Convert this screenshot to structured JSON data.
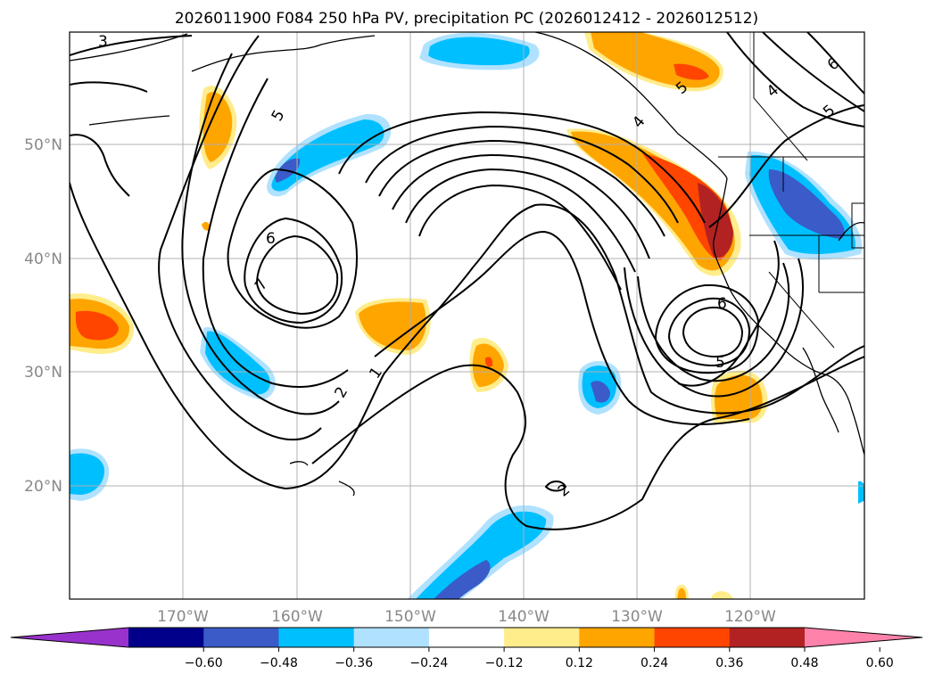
{
  "title": "2026011900 F084 250 hPa PV, precipitation PC (2026012412 - 2026012512)",
  "latitude_labels": [
    "50°N",
    "40°N",
    "30°N",
    "20°N"
  ],
  "longitude_labels": [
    "170°W",
    "160°W",
    "150°W",
    "140°W",
    "130°W",
    "120°W"
  ],
  "contour_labels": [
    "3",
    "5",
    "6",
    "7",
    "2",
    "1",
    "4",
    "5",
    "6",
    "5",
    "6",
    "5",
    "2",
    "4"
  ],
  "colorbar": {
    "tick_labels": [
      "−0.60",
      "−0.48",
      "−0.36",
      "−0.24",
      "−0.12",
      "0.12",
      "0.24",
      "0.36",
      "0.48",
      "0.60"
    ],
    "colors": [
      "#9932cc",
      "#00008b",
      "#3a5bc8",
      "#00bfff",
      "#b0e2ff",
      "#ffffff",
      "#ffec8b",
      "#ffa500",
      "#ff4500",
      "#b22222",
      "#ff82ab"
    ]
  }
}
